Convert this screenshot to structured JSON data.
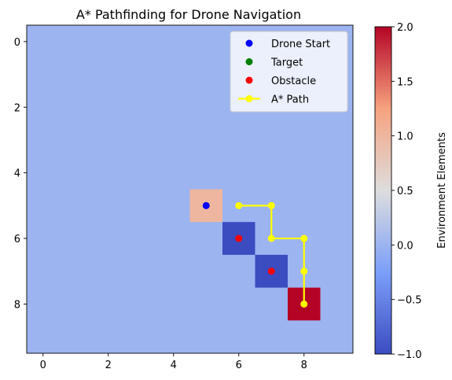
{
  "chart_data": {
    "type": "heatmap",
    "title": "A* Pathfinding for Drone Navigation",
    "xlabel": "",
    "ylabel": "",
    "grid_size": [
      10,
      10
    ],
    "xlim": [
      -0.5,
      9.5
    ],
    "ylim": [
      9.5,
      -0.5
    ],
    "x_ticks": [
      0,
      2,
      4,
      6,
      8
    ],
    "y_ticks": [
      0,
      2,
      4,
      6,
      8
    ],
    "grid": false,
    "background_value": 0,
    "cells": [
      {
        "x": 5,
        "y": 5,
        "value": 1
      },
      {
        "x": 6,
        "y": 6,
        "value": -1
      },
      {
        "x": 7,
        "y": 7,
        "value": -1
      },
      {
        "x": 8,
        "y": 8,
        "value": 2
      }
    ],
    "series": [
      {
        "name": "Drone Start",
        "kind": "scatter",
        "color": "#0000ff",
        "points": [
          [
            5,
            5
          ]
        ]
      },
      {
        "name": "Target",
        "kind": "scatter",
        "color": "#008000",
        "points": []
      },
      {
        "name": "Obstacle",
        "kind": "scatter",
        "color": "#ff0000",
        "points": [
          [
            6,
            6
          ],
          [
            7,
            7
          ]
        ]
      },
      {
        "name": "A* Path",
        "kind": "line",
        "color": "#ffff00",
        "points": [
          [
            6,
            5
          ],
          [
            7,
            5
          ],
          [
            7,
            6
          ],
          [
            8,
            6
          ],
          [
            8,
            7
          ],
          [
            8,
            8
          ]
        ]
      }
    ],
    "legend_position": "upper-right",
    "colorbar": {
      "label": "Environment Elements",
      "range": [
        -1.0,
        2.0
      ],
      "colormap": "coolwarm",
      "ticks": [
        -1.0,
        -0.5,
        0.0,
        0.5,
        1.0,
        1.5,
        2.0
      ],
      "tick_labels": [
        "−1.0",
        "−0.5",
        "0.0",
        "0.5",
        "1.0",
        "1.5",
        "2.0"
      ]
    }
  }
}
